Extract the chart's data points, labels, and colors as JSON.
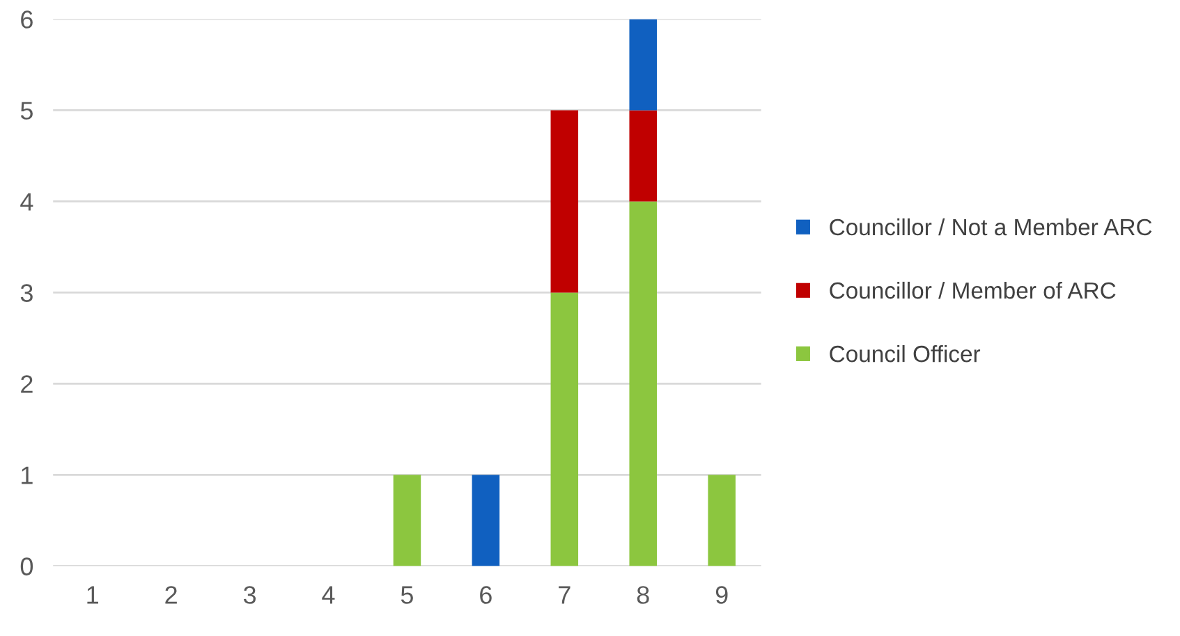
{
  "chart_data": {
    "type": "bar",
    "stacked": true,
    "categories": [
      "1",
      "2",
      "3",
      "4",
      "5",
      "6",
      "7",
      "8",
      "9"
    ],
    "series": [
      {
        "name": "Council Officer",
        "color": "#8cc63f",
        "values": [
          0,
          0,
          0,
          0,
          1,
          0,
          3,
          4,
          1
        ]
      },
      {
        "name": "Councillor / Member of ARC",
        "color": "#c00000",
        "values": [
          0,
          0,
          0,
          0,
          0,
          0,
          2,
          1,
          0
        ]
      },
      {
        "name": "Councillor / Not a Member ARC",
        "color": "#1060c0",
        "values": [
          0,
          0,
          0,
          0,
          0,
          1,
          0,
          1,
          0
        ]
      }
    ],
    "ylim": [
      0,
      6
    ],
    "yticks": [
      0,
      1,
      2,
      3,
      4,
      5,
      6
    ],
    "grid": "y",
    "legend": "right"
  }
}
